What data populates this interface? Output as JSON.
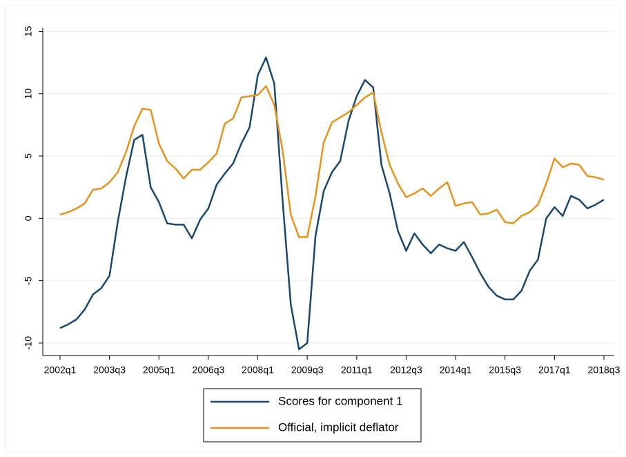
{
  "chart_data": {
    "type": "line",
    "categories": [
      "2002q1",
      null,
      null,
      null,
      null,
      null,
      "2003q3",
      null,
      null,
      null,
      null,
      null,
      "2005q1",
      null,
      null,
      null,
      null,
      null,
      "2006q3",
      null,
      null,
      null,
      null,
      null,
      "2008q1",
      null,
      null,
      null,
      null,
      null,
      "2009q3",
      null,
      null,
      null,
      null,
      null,
      "2011q1",
      null,
      null,
      null,
      null,
      null,
      "2012q3",
      null,
      null,
      null,
      null,
      null,
      "2014q1",
      null,
      null,
      null,
      null,
      null,
      "2015q3",
      null,
      null,
      null,
      null,
      null,
      "2017q1",
      null,
      null,
      null,
      null,
      null,
      "2018q3"
    ],
    "series": [
      {
        "name": "Scores for component 1",
        "color": "#1a476f",
        "values": [
          -8.8,
          -8.5,
          -8.1,
          -7.3,
          -6.1,
          -5.6,
          -4.6,
          -0.3,
          3.3,
          6.3,
          6.7,
          2.5,
          1.3,
          -0.4,
          -0.5,
          -0.5,
          -1.6,
          -0.1,
          0.8,
          2.7,
          3.6,
          4.4,
          6.0,
          7.3,
          11.5,
          12.9,
          10.8,
          1.5,
          -6.9,
          -10.5,
          -10.0,
          -1.4,
          2.2,
          3.7,
          4.6,
          7.8,
          9.8,
          11.1,
          10.5,
          4.3,
          2.0,
          -1.0,
          -2.6,
          -1.2,
          -2.1,
          -2.8,
          -2.1,
          -2.4,
          -2.6,
          -1.9,
          -3.1,
          -4.4,
          -5.5,
          -6.2,
          -6.5,
          -6.5,
          -5.8,
          -4.2,
          -3.3,
          0.0,
          0.9,
          0.2,
          1.8,
          1.5,
          0.8,
          1.1,
          1.5
        ]
      },
      {
        "name": "Official, implicit deflator",
        "color": "#e8921b",
        "values": [
          0.3,
          0.5,
          0.8,
          1.2,
          2.3,
          2.4,
          2.9,
          3.7,
          5.3,
          7.4,
          8.8,
          8.7,
          6.0,
          4.6,
          4.0,
          3.2,
          3.9,
          3.9,
          4.5,
          5.2,
          7.6,
          8.0,
          9.7,
          9.8,
          9.9,
          10.6,
          9.1,
          5.5,
          0.3,
          -1.5,
          -1.5,
          1.8,
          6.1,
          7.7,
          8.1,
          8.5,
          9.1,
          9.7,
          10.1,
          6.9,
          4.3,
          2.8,
          1.7,
          2.0,
          2.4,
          1.8,
          2.4,
          2.9,
          1.0,
          1.2,
          1.3,
          0.3,
          0.4,
          0.7,
          -0.3,
          -0.4,
          0.2,
          0.5,
          1.1,
          2.8,
          4.8,
          4.1,
          4.4,
          4.3,
          3.4,
          3.3,
          3.1
        ]
      }
    ],
    "ylim": [
      -11,
      15.3
    ],
    "yticks": [
      -10,
      -5,
      0,
      5,
      10,
      15
    ],
    "grid": true,
    "legend": "bottom"
  }
}
